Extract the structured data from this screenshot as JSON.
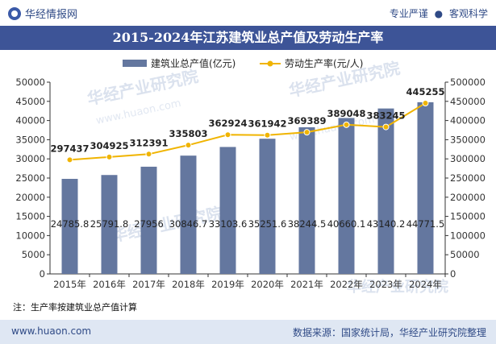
{
  "header": {
    "brand": "华经情报网",
    "tagline_left": "专业严谨",
    "tagline_sep": "●",
    "tagline_right": "客观科学"
  },
  "title": "2015-2024年江苏建筑业总产值及劳动生产率",
  "note": "注：生产率按建筑业总产值计算",
  "footer": {
    "site": "www.huaon.com",
    "source": "数据来源：国家统计局，华经产业研究院整理"
  },
  "watermarks": [
    "华经产业研究院",
    "www.huaon.com"
  ],
  "colors": {
    "bar": "#64779f",
    "line": "#f0b400",
    "title_bg": "#3d5497",
    "footer_bg": "#dfe7f3"
  },
  "chart_data": {
    "type": "bar",
    "categories": [
      "2015年",
      "2016年",
      "2017年",
      "2018年",
      "2019年",
      "2020年",
      "2021年",
      "2022年",
      "2023年",
      "2024年"
    ],
    "series": [
      {
        "name": "建筑业总产值(亿元)",
        "type": "bar",
        "axis": "left",
        "values": [
          24785.8,
          25791.8,
          27956,
          30846.7,
          33103.6,
          35251.6,
          38244.5,
          40660.1,
          43140.2,
          44771.5
        ],
        "labels": [
          "24785.8",
          "25791.8",
          "27956",
          "30846.7",
          "33103.6",
          "35251.6",
          "38244.5",
          "40660.1",
          "43140.2",
          "44771.5"
        ]
      },
      {
        "name": "劳动生产率(元/人)",
        "type": "line",
        "axis": "right",
        "values": [
          297437,
          304925,
          312391,
          335803,
          362924,
          361942,
          369389,
          389048,
          383245,
          445255
        ],
        "labels": [
          "297437",
          "304925",
          "312391",
          "335803",
          "362924",
          "361942",
          "369389",
          "389048",
          "383245",
          "445255"
        ]
      }
    ],
    "y_left": {
      "range": [
        0,
        50000
      ],
      "ticks": [
        "0",
        "5000",
        "10000",
        "15000",
        "20000",
        "25000",
        "30000",
        "35000",
        "40000",
        "45000",
        "50000"
      ]
    },
    "y_right": {
      "range": [
        0,
        500000
      ],
      "ticks": [
        "0",
        "50000",
        "100000",
        "150000",
        "200000",
        "250000",
        "300000",
        "350000",
        "400000",
        "450000",
        "500000"
      ]
    },
    "grid": false,
    "legend_position": "top-center"
  }
}
